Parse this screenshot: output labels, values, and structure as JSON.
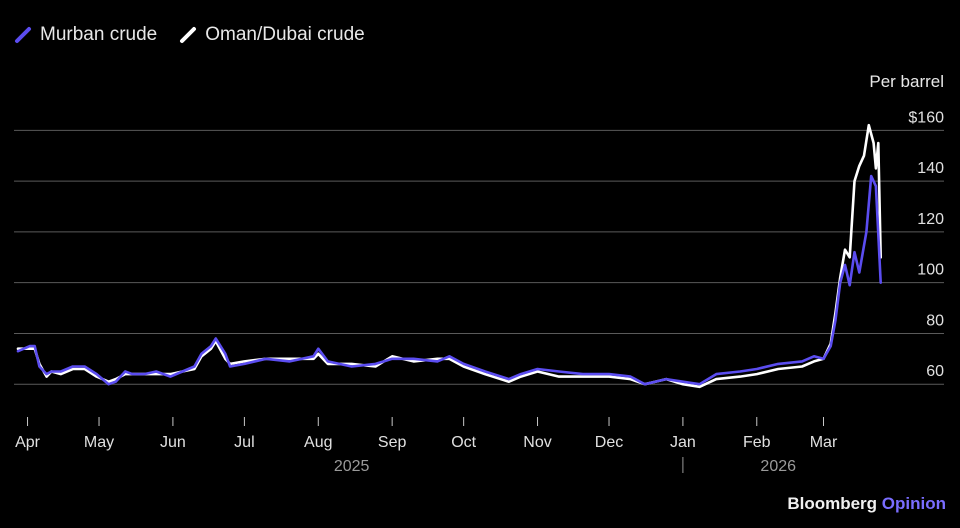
{
  "legend": {
    "murban": "Murban crude",
    "oman": "Oman/Dubai crude"
  },
  "unit": {
    "line1": "Per barrel",
    "line2": "$160"
  },
  "credit": {
    "brand": "Bloomberg",
    "section": "Opinion"
  },
  "colors": {
    "murban": "#5b4df0",
    "oman": "#ffffff",
    "grid": "#5a5a5a",
    "background": "#000000"
  },
  "chart_data": {
    "type": "line",
    "title": "",
    "xlabel": "",
    "ylabel": "Per barrel",
    "ylim": [
      53,
      168
    ],
    "yticks": [
      60,
      80,
      100,
      120,
      140,
      160
    ],
    "ytick_labels": [
      "60",
      "80",
      "100",
      "120",
      "140",
      "$160"
    ],
    "xlim": [
      "2025-03-28",
      "2026-03-31"
    ],
    "x_ticks": [
      {
        "date": "2025-04-01",
        "label": "Apr"
      },
      {
        "date": "2025-05-01",
        "label": "May"
      },
      {
        "date": "2025-06-01",
        "label": "Jun"
      },
      {
        "date": "2025-07-01",
        "label": "Jul"
      },
      {
        "date": "2025-08-01",
        "label": "Aug"
      },
      {
        "date": "2025-09-01",
        "label": "Sep"
      },
      {
        "date": "2025-10-01",
        "label": "Oct"
      },
      {
        "date": "2025-11-01",
        "label": "Nov"
      },
      {
        "date": "2025-12-01",
        "label": "Dec"
      },
      {
        "date": "2026-01-01",
        "label": "Jan"
      },
      {
        "date": "2026-02-01",
        "label": "Feb"
      },
      {
        "date": "2026-03-01",
        "label": "Mar"
      }
    ],
    "year_labels": [
      {
        "date": "2025-08-15",
        "label": "2025"
      },
      {
        "date": "2026-02-10",
        "label": "2026"
      }
    ],
    "year_divider": "2026-01-01",
    "legend_position": "top-left",
    "grid": true,
    "series": [
      {
        "name": "Murban crude",
        "points": [
          [
            "2025-03-28",
            73
          ],
          [
            "2025-04-02",
            75
          ],
          [
            "2025-04-04",
            75
          ],
          [
            "2025-04-06",
            67
          ],
          [
            "2025-04-09",
            64
          ],
          [
            "2025-04-11",
            65
          ],
          [
            "2025-04-15",
            65
          ],
          [
            "2025-04-20",
            67
          ],
          [
            "2025-04-25",
            67
          ],
          [
            "2025-04-30",
            64
          ],
          [
            "2025-05-05",
            60
          ],
          [
            "2025-05-08",
            61
          ],
          [
            "2025-05-12",
            65
          ],
          [
            "2025-05-15",
            64
          ],
          [
            "2025-05-20",
            64
          ],
          [
            "2025-05-25",
            65
          ],
          [
            "2025-05-31",
            63
          ],
          [
            "2025-06-05",
            65
          ],
          [
            "2025-06-10",
            67
          ],
          [
            "2025-06-13",
            72
          ],
          [
            "2025-06-17",
            75
          ],
          [
            "2025-06-19",
            78
          ],
          [
            "2025-06-23",
            72
          ],
          [
            "2025-06-25",
            67
          ],
          [
            "2025-07-01",
            68
          ],
          [
            "2025-07-10",
            70
          ],
          [
            "2025-07-20",
            69
          ],
          [
            "2025-07-30",
            71
          ],
          [
            "2025-08-01",
            74
          ],
          [
            "2025-08-05",
            69
          ],
          [
            "2025-08-15",
            67
          ],
          [
            "2025-08-25",
            68
          ],
          [
            "2025-09-01",
            70
          ],
          [
            "2025-09-10",
            70
          ],
          [
            "2025-09-20",
            69
          ],
          [
            "2025-09-25",
            71
          ],
          [
            "2025-10-01",
            68
          ],
          [
            "2025-10-10",
            65
          ],
          [
            "2025-10-20",
            62
          ],
          [
            "2025-10-25",
            64
          ],
          [
            "2025-11-01",
            66
          ],
          [
            "2025-11-10",
            65
          ],
          [
            "2025-11-20",
            64
          ],
          [
            "2025-12-01",
            64
          ],
          [
            "2025-12-10",
            63
          ],
          [
            "2025-12-16",
            60
          ],
          [
            "2025-12-25",
            62
          ],
          [
            "2026-01-01",
            61
          ],
          [
            "2026-01-08",
            60
          ],
          [
            "2026-01-15",
            64
          ],
          [
            "2026-01-25",
            65
          ],
          [
            "2026-02-01",
            66
          ],
          [
            "2026-02-10",
            68
          ],
          [
            "2026-02-20",
            69
          ],
          [
            "2026-02-25",
            71
          ],
          [
            "2026-03-01",
            70
          ],
          [
            "2026-03-04",
            75
          ],
          [
            "2026-03-06",
            85
          ],
          [
            "2026-03-08",
            100
          ],
          [
            "2026-03-10",
            107
          ],
          [
            "2026-03-12",
            99
          ],
          [
            "2026-03-14",
            112
          ],
          [
            "2026-03-16",
            104
          ],
          [
            "2026-03-19",
            120
          ],
          [
            "2026-03-21",
            142
          ],
          [
            "2026-03-23",
            138
          ],
          [
            "2026-03-25",
            100
          ]
        ]
      },
      {
        "name": "Oman/Dubai crude",
        "points": [
          [
            "2025-03-28",
            74
          ],
          [
            "2025-04-02",
            74
          ],
          [
            "2025-04-04",
            74
          ],
          [
            "2025-04-06",
            68
          ],
          [
            "2025-04-09",
            63
          ],
          [
            "2025-04-11",
            65
          ],
          [
            "2025-04-15",
            64
          ],
          [
            "2025-04-20",
            66
          ],
          [
            "2025-04-25",
            66
          ],
          [
            "2025-04-30",
            63
          ],
          [
            "2025-05-05",
            61
          ],
          [
            "2025-05-08",
            62
          ],
          [
            "2025-05-12",
            64
          ],
          [
            "2025-05-15",
            64
          ],
          [
            "2025-05-20",
            64
          ],
          [
            "2025-05-25",
            64
          ],
          [
            "2025-05-31",
            64
          ],
          [
            "2025-06-05",
            65
          ],
          [
            "2025-06-10",
            66
          ],
          [
            "2025-06-13",
            71
          ],
          [
            "2025-06-17",
            74
          ],
          [
            "2025-06-19",
            77
          ],
          [
            "2025-06-23",
            70
          ],
          [
            "2025-06-25",
            68
          ],
          [
            "2025-07-01",
            69
          ],
          [
            "2025-07-10",
            70
          ],
          [
            "2025-07-20",
            70
          ],
          [
            "2025-07-30",
            70
          ],
          [
            "2025-08-01",
            72
          ],
          [
            "2025-08-05",
            68
          ],
          [
            "2025-08-15",
            68
          ],
          [
            "2025-08-25",
            67
          ],
          [
            "2025-09-01",
            71
          ],
          [
            "2025-09-10",
            69
          ],
          [
            "2025-09-20",
            70
          ],
          [
            "2025-09-25",
            70
          ],
          [
            "2025-10-01",
            67
          ],
          [
            "2025-10-10",
            64
          ],
          [
            "2025-10-20",
            61
          ],
          [
            "2025-10-25",
            63
          ],
          [
            "2025-11-01",
            65
          ],
          [
            "2025-11-10",
            63
          ],
          [
            "2025-11-20",
            63
          ],
          [
            "2025-12-01",
            63
          ],
          [
            "2025-12-10",
            62
          ],
          [
            "2025-12-16",
            60
          ],
          [
            "2025-12-25",
            62
          ],
          [
            "2026-01-01",
            60
          ],
          [
            "2026-01-08",
            59
          ],
          [
            "2026-01-15",
            62
          ],
          [
            "2026-01-25",
            63
          ],
          [
            "2026-02-01",
            64
          ],
          [
            "2026-02-10",
            66
          ],
          [
            "2026-02-20",
            67
          ],
          [
            "2026-02-25",
            69
          ],
          [
            "2026-03-01",
            70
          ],
          [
            "2026-03-04",
            76
          ],
          [
            "2026-03-06",
            88
          ],
          [
            "2026-03-08",
            102
          ],
          [
            "2026-03-10",
            113
          ],
          [
            "2026-03-12",
            110
          ],
          [
            "2026-03-14",
            140
          ],
          [
            "2026-03-16",
            146
          ],
          [
            "2026-03-18",
            150
          ],
          [
            "2026-03-20",
            162
          ],
          [
            "2026-03-22",
            155
          ],
          [
            "2026-03-23",
            145
          ],
          [
            "2026-03-24",
            155
          ],
          [
            "2026-03-25",
            110
          ]
        ]
      }
    ]
  }
}
